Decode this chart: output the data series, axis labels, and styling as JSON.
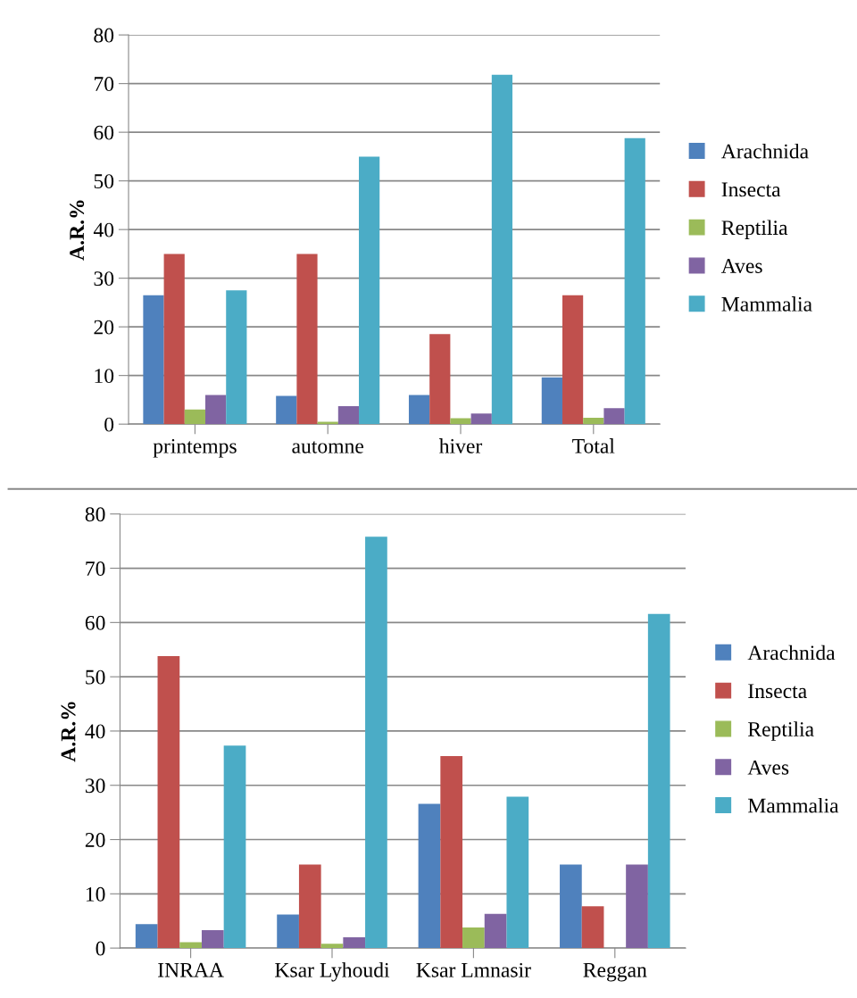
{
  "chart_data": [
    {
      "type": "bar",
      "ylabel": "A.R.%",
      "categories": [
        "printemps",
        "automne",
        "hiver",
        "Total"
      ],
      "ylim": [
        0,
        80
      ],
      "yticks": [
        0,
        10,
        20,
        30,
        40,
        50,
        60,
        70,
        80
      ],
      "grid": "y",
      "legend": "right",
      "series": [
        {
          "name": "Arachnida",
          "color": "#4f81bd",
          "values": [
            26.5,
            5.8,
            6,
            9.6
          ]
        },
        {
          "name": "Insecta",
          "color": "#c0504d",
          "values": [
            35,
            35,
            18.5,
            26.5
          ]
        },
        {
          "name": "Reptilia",
          "color": "#9bbb59",
          "values": [
            3,
            0.5,
            1.2,
            1.3
          ]
        },
        {
          "name": "Aves",
          "color": "#8064a2",
          "values": [
            6,
            3.7,
            2.2,
            3.3
          ]
        },
        {
          "name": "Mammalia",
          "color": "#4bacc6",
          "values": [
            27.5,
            55,
            71.8,
            58.8
          ]
        }
      ]
    },
    {
      "type": "bar",
      "ylabel": "A.R.%",
      "categories": [
        "INRAA",
        "Ksar Lyhoudi",
        "Ksar Lmnasir",
        "Reggan"
      ],
      "ylim": [
        0,
        80
      ],
      "yticks": [
        0,
        10,
        20,
        30,
        40,
        50,
        60,
        70,
        80
      ],
      "grid": "y",
      "legend": "right",
      "series": [
        {
          "name": "Arachnida",
          "color": "#4f81bd",
          "values": [
            4.4,
            6.2,
            26.6,
            15.4
          ]
        },
        {
          "name": "Insecta",
          "color": "#c0504d",
          "values": [
            53.8,
            15.4,
            35.4,
            7.7
          ]
        },
        {
          "name": "Reptilia",
          "color": "#9bbb59",
          "values": [
            1.1,
            0.8,
            3.8,
            0
          ]
        },
        {
          "name": "Aves",
          "color": "#8064a2",
          "values": [
            3.3,
            2,
            6.3,
            15.4
          ]
        },
        {
          "name": "Mammalia",
          "color": "#4bacc6",
          "values": [
            37.3,
            75.8,
            27.9,
            61.6
          ]
        }
      ]
    }
  ]
}
